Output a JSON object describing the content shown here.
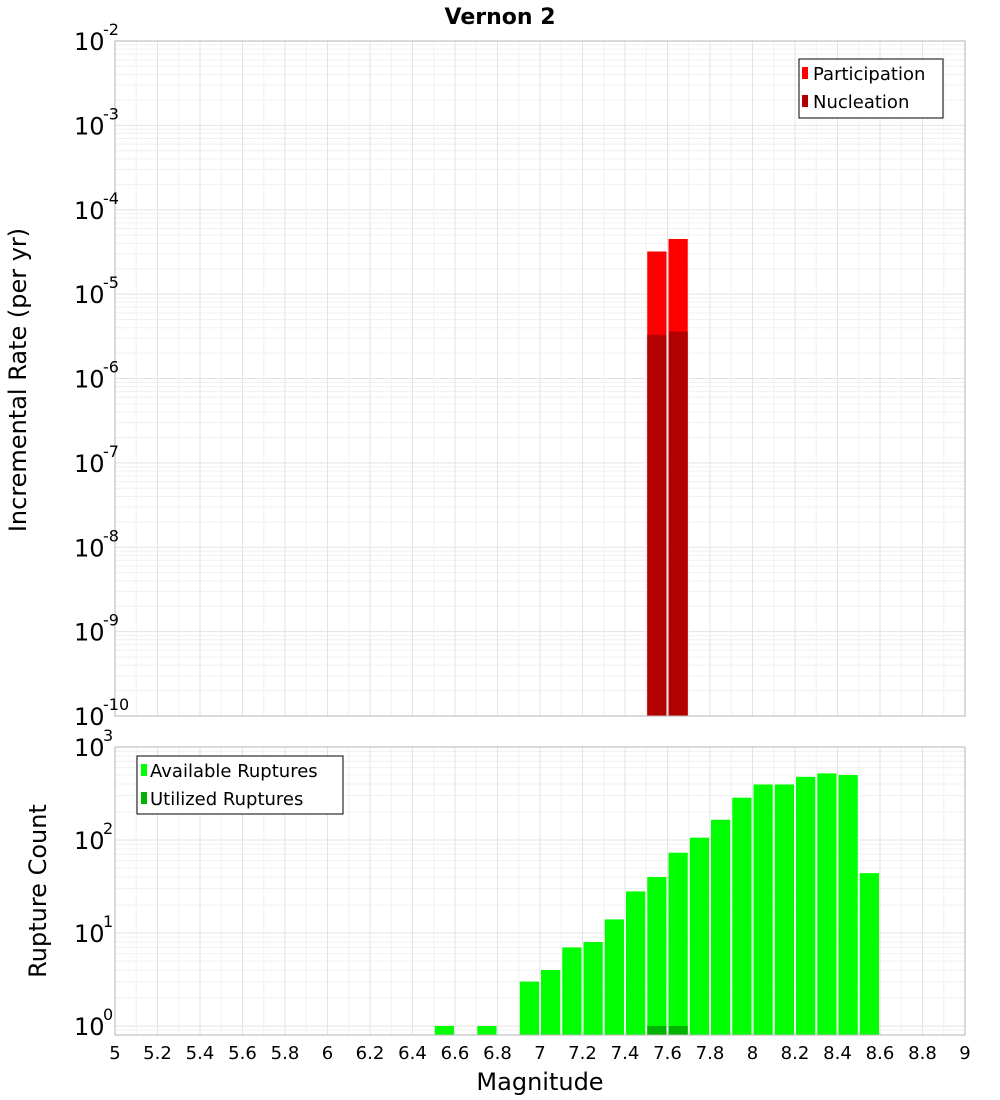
{
  "chart_data": [
    {
      "type": "bar",
      "title": "Vernon 2",
      "ylabel": "Incremental Rate (per yr)",
      "xlabel": "",
      "y_scale": "log",
      "ylim_exponents": [
        -10,
        -2
      ],
      "xlim": [
        5,
        9
      ],
      "bar_width": 0.1,
      "legend_position": "top-right",
      "series": [
        {
          "name": "Participation",
          "color": "#ff0000",
          "x": [
            7.55,
            7.65
          ],
          "values": [
            3.2e-05,
            4.5e-05
          ]
        },
        {
          "name": "Nucleation",
          "color": "#b30000",
          "x": [
            7.55,
            7.65
          ],
          "values": [
            3.3e-06,
            3.6e-06
          ]
        }
      ]
    },
    {
      "type": "bar",
      "title": "",
      "ylabel": "Rupture Count",
      "xlabel": "Magnitude",
      "y_scale": "log",
      "ylim_exponents": [
        0,
        3
      ],
      "ylim": [
        0.8,
        1000
      ],
      "xlim": [
        5,
        9
      ],
      "bar_width": 0.1,
      "legend_position": "top-left",
      "x_ticks": [
        "5",
        "5.2",
        "5.4",
        "5.6",
        "5.8",
        "6",
        "6.2",
        "6.4",
        "6.6",
        "6.8",
        "7",
        "7.2",
        "7.4",
        "7.6",
        "7.8",
        "8",
        "8.2",
        "8.4",
        "8.6",
        "8.8",
        "9"
      ],
      "series": [
        {
          "name": "Available Ruptures",
          "color": "#00ff00",
          "x": [
            6.55,
            6.75,
            6.95,
            7.05,
            7.15,
            7.25,
            7.35,
            7.45,
            7.55,
            7.65,
            7.75,
            7.85,
            7.95,
            8.05,
            8.15,
            8.25,
            8.35,
            8.45,
            8.55
          ],
          "values": [
            1,
            1,
            3,
            4,
            7,
            8,
            14,
            28,
            40,
            73,
            106,
            165,
            285,
            395,
            395,
            478,
            520,
            500,
            44
          ]
        },
        {
          "name": "Utilized Ruptures",
          "color": "#00b300",
          "x": [
            7.55,
            7.65
          ],
          "values": [
            1,
            1
          ]
        }
      ]
    }
  ]
}
